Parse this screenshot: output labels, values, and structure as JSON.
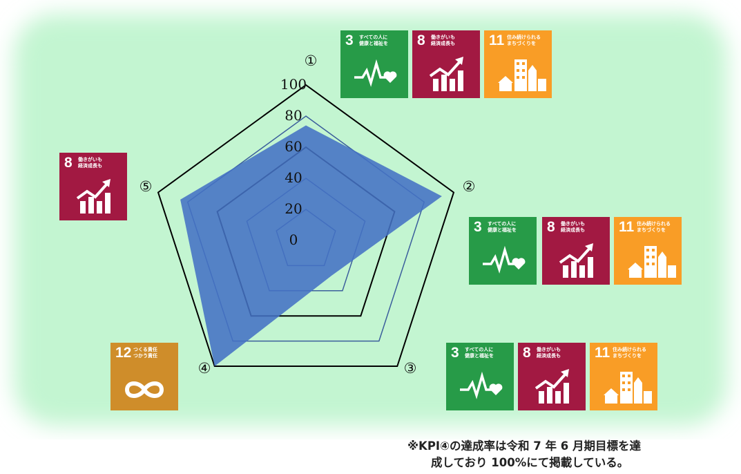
{
  "colors": {
    "background_panel": "#c3f5d1",
    "radar_fill": "#4472c4",
    "grid_outer": "#000000",
    "grid_inner": "#3b5e9c",
    "sdg3": "#279b48",
    "sdg8": "#a21942",
    "sdg11": "#f99d26",
    "sdg12": "#cf8d2a"
  },
  "chart_data": {
    "type": "radar",
    "axes": [
      "①",
      "②",
      "③",
      "④",
      "⑤"
    ],
    "r_ticks": [
      "0",
      "20",
      "40",
      "60",
      "80",
      "100"
    ],
    "r_range": [
      0,
      100
    ],
    "series": [
      {
        "values": [
          74,
          92,
          28,
          100,
          85
        ]
      }
    ]
  },
  "sdg_icons": {
    "goal3": {
      "number": "3",
      "text": "すべての人に\n健康と福祉を",
      "icon": "heartbeat-icon"
    },
    "goal8": {
      "number": "8",
      "text": "働きがいも\n経済成長も",
      "icon": "growth-chart-icon"
    },
    "goal11": {
      "number": "11",
      "text": "住み続けられる\nまちづくりを",
      "icon": "city-buildings-icon"
    },
    "goal12": {
      "number": "12",
      "text": "つくる責任\nつかう責任",
      "icon": "infinity-loop-icon"
    }
  },
  "note": {
    "line1": "※KPI④の達成率は令和 7 年 6 月期目標を達",
    "line2": "成しており 100%にて掲載している。"
  }
}
